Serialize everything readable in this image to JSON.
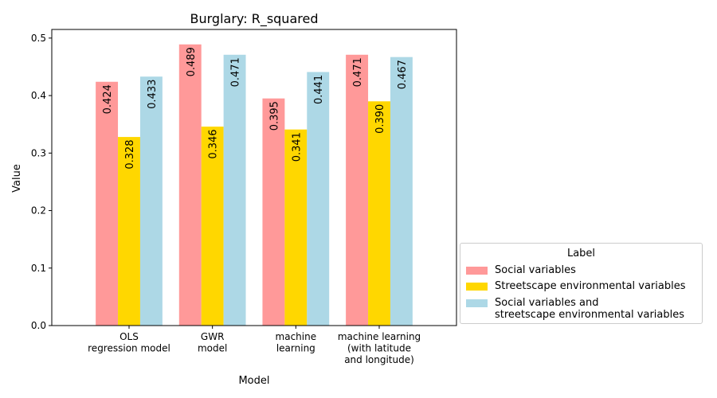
{
  "chart_data": {
    "type": "bar",
    "title": "Burglary: R_squared",
    "xlabel": "Model",
    "ylabel": "Value",
    "ylim": [
      0,
      0.515
    ],
    "yticks": [
      "0.0",
      "0.1",
      "0.2",
      "0.3",
      "0.4",
      "0.5"
    ],
    "categories": [
      "OLS\nregression model",
      "GWR\nmodel",
      "machine\nlearning",
      "machine learning\n(with latitude\nand longitude)"
    ],
    "series": [
      {
        "name": "Social variables",
        "color": "#ff9999",
        "values": [
          0.424,
          0.489,
          0.395,
          0.471
        ],
        "labels": [
          "0.424",
          "0.489",
          "0.395",
          "0.471"
        ]
      },
      {
        "name": "Streetscape environmental variables",
        "color": "#ffd700",
        "values": [
          0.328,
          0.346,
          0.341,
          0.39
        ],
        "labels": [
          "0.328",
          "0.346",
          "0.341",
          "0.390"
        ]
      },
      {
        "name": "Social variables and\nstreetscape environmental variables",
        "color": "#add8e6",
        "values": [
          0.433,
          0.471,
          0.441,
          0.467
        ],
        "labels": [
          "0.433",
          "0.471",
          "0.441",
          "0.467"
        ]
      }
    ],
    "legend": {
      "title": "Label",
      "placement": "outside-bottom-right"
    },
    "grid": false
  }
}
